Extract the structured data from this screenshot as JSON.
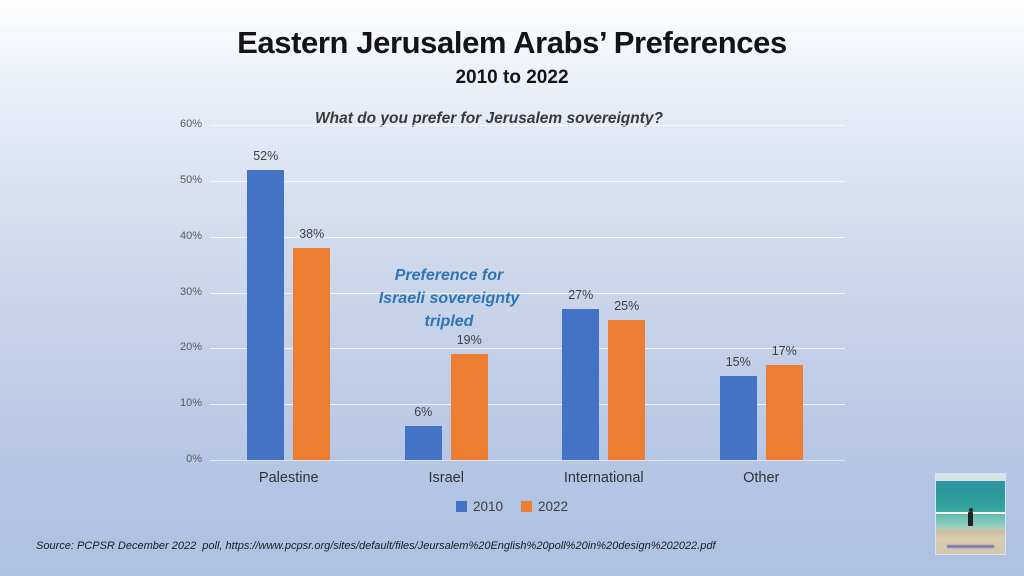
{
  "slide": {
    "title": "Eastern Jerusalem Arabs’ Preferences",
    "subtitle": "2010 to 2022",
    "source": "Source: PCPSR December 2022  poll, https://www.pcpsr.org/sites/default/files/Jeursalem%20English%20poll%20in%20design%202022.pdf"
  },
  "chart_data": {
    "type": "bar",
    "title": "What do you prefer for Jerusalem sovereignty?",
    "categories": [
      "Palestine",
      "Israel",
      "International",
      "Other"
    ],
    "series": [
      {
        "name": "2010",
        "color": "#4472C4",
        "values": [
          52,
          6,
          27,
          15
        ]
      },
      {
        "name": "2022",
        "color": "#ED7D31",
        "values": [
          38,
          19,
          25,
          17
        ]
      }
    ],
    "data_labels": [
      [
        "52%",
        "6%",
        "27%",
        "15%"
      ],
      [
        "38%",
        "19%",
        "25%",
        "17%"
      ]
    ],
    "xlabel": "",
    "ylabel": "",
    "ylim": [
      0,
      60
    ],
    "ytick_labels": [
      "0%",
      "10%",
      "20%",
      "30%",
      "40%",
      "50%",
      "60%"
    ],
    "grid": true,
    "legend_position": "bottom",
    "annotation": {
      "lines": [
        "Preference for",
        "Israeli sovereignty",
        "tripled"
      ],
      "color": "#2E75B6"
    }
  },
  "colors": {
    "background_top": "#FFFFFF",
    "background_bottom": "#ADC1E2",
    "axis_text": "#595959",
    "label_text": "#404040"
  }
}
